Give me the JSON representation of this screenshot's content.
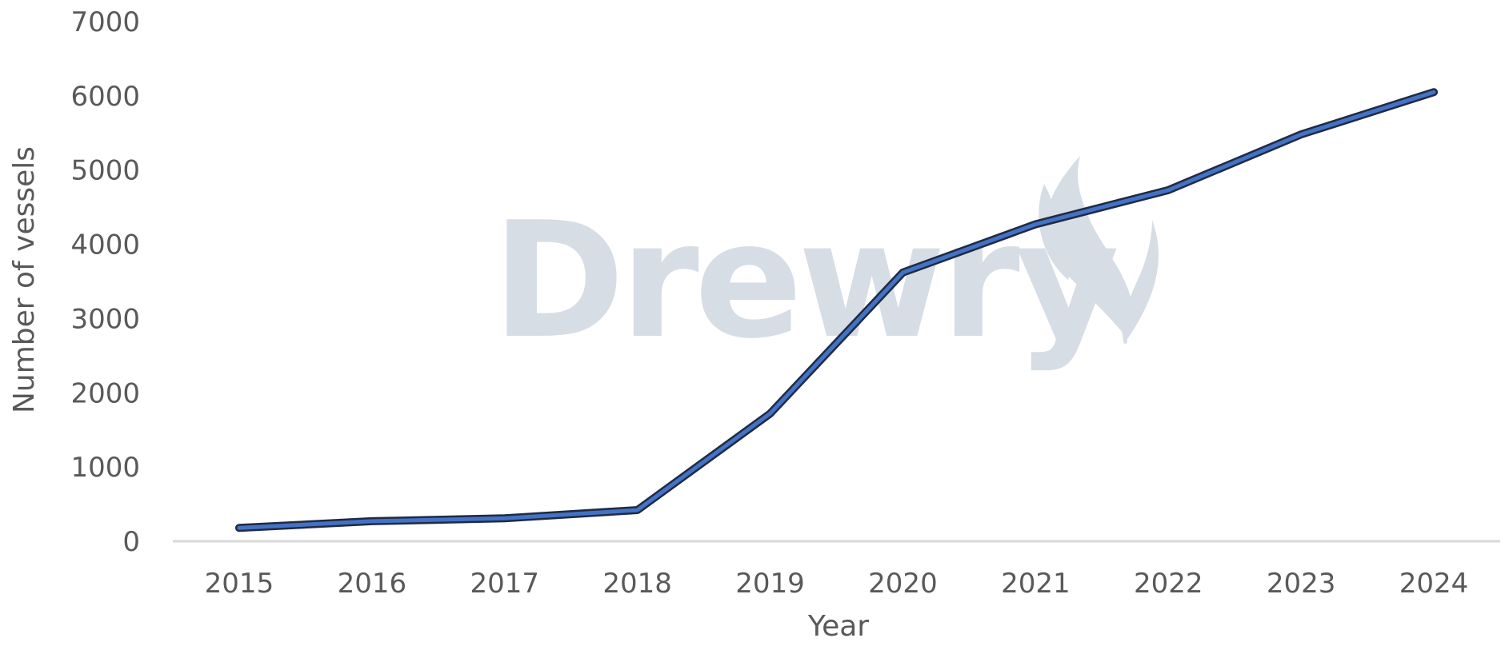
{
  "chart_data": {
    "type": "line",
    "title": "",
    "xlabel": "Year",
    "ylabel": "Number of vessels",
    "categories": [
      "2015",
      "2016",
      "2017",
      "2018",
      "2019",
      "2020",
      "2021",
      "2022",
      "2023",
      "2024"
    ],
    "series": [
      {
        "values": [
          180,
          270,
          310,
          420,
          1720,
          3620,
          4270,
          4730,
          5480,
          6050
        ]
      }
    ],
    "ylim": [
      0,
      7000
    ],
    "yticks": [
      "0",
      "1000",
      "2000",
      "3000",
      "4000",
      "5000",
      "6000",
      "7000"
    ],
    "grid": false,
    "legend": "none",
    "line_color": "#4472C4",
    "line_edge_color": "#1F2A44",
    "watermark": "Drewry"
  }
}
